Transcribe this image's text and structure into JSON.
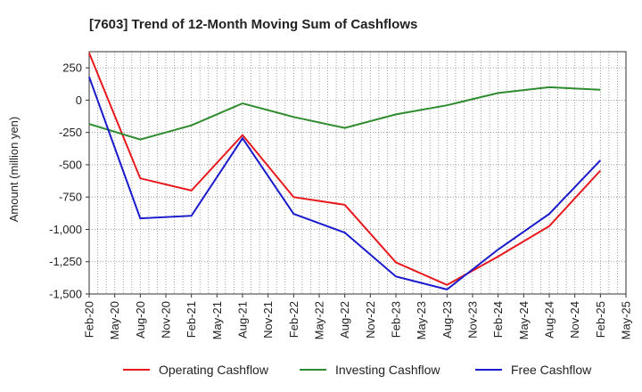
{
  "chart_data": {
    "type": "line",
    "title": "[7603]  Trend of 12-Month Moving Sum of Cashflows",
    "xlabel": "",
    "ylabel": "Amount (million yen)",
    "ylim": [
      -1500,
      375
    ],
    "yticks": [
      250,
      0,
      -250,
      -500,
      -750,
      -1000,
      -1250,
      -1500
    ],
    "ytick_labels": [
      "250",
      "0",
      "-250",
      "-500",
      "-750",
      "-1,000",
      "-1,250",
      "-1,500"
    ],
    "x_tick_labels": [
      "Feb-20",
      "May-20",
      "Aug-20",
      "Nov-20",
      "Feb-21",
      "May-21",
      "Aug-21",
      "Nov-21",
      "Feb-22",
      "May-22",
      "Aug-22",
      "Nov-22",
      "Feb-23",
      "May-23",
      "Aug-23",
      "Nov-23",
      "Feb-24",
      "May-24",
      "Aug-24",
      "Nov-24",
      "Feb-25",
      "May-25"
    ],
    "x": [
      "Feb-20",
      "Aug-20",
      "Feb-21",
      "Aug-21",
      "Feb-22",
      "Aug-22",
      "Feb-23",
      "Aug-23",
      "Feb-24",
      "Aug-24",
      "Feb-25"
    ],
    "grid": true,
    "legend_position": "bottom",
    "series": [
      {
        "name": "Operating Cashflow",
        "color": "#e8191e",
        "values": [
          365,
          -605,
          -700,
          -270,
          -750,
          -810,
          -1255,
          -1430,
          -1210,
          -975,
          -545
        ]
      },
      {
        "name": "Investing Cashflow",
        "color": "#2e8b2e",
        "values": [
          -185,
          -305,
          -195,
          -25,
          -130,
          -215,
          -110,
          -40,
          55,
          100,
          80
        ]
      },
      {
        "name": "Free Cashflow",
        "color": "#1a1acd",
        "values": [
          180,
          -915,
          -895,
          -295,
          -880,
          -1025,
          -1365,
          -1465,
          -1155,
          -880,
          -465
        ]
      }
    ]
  }
}
